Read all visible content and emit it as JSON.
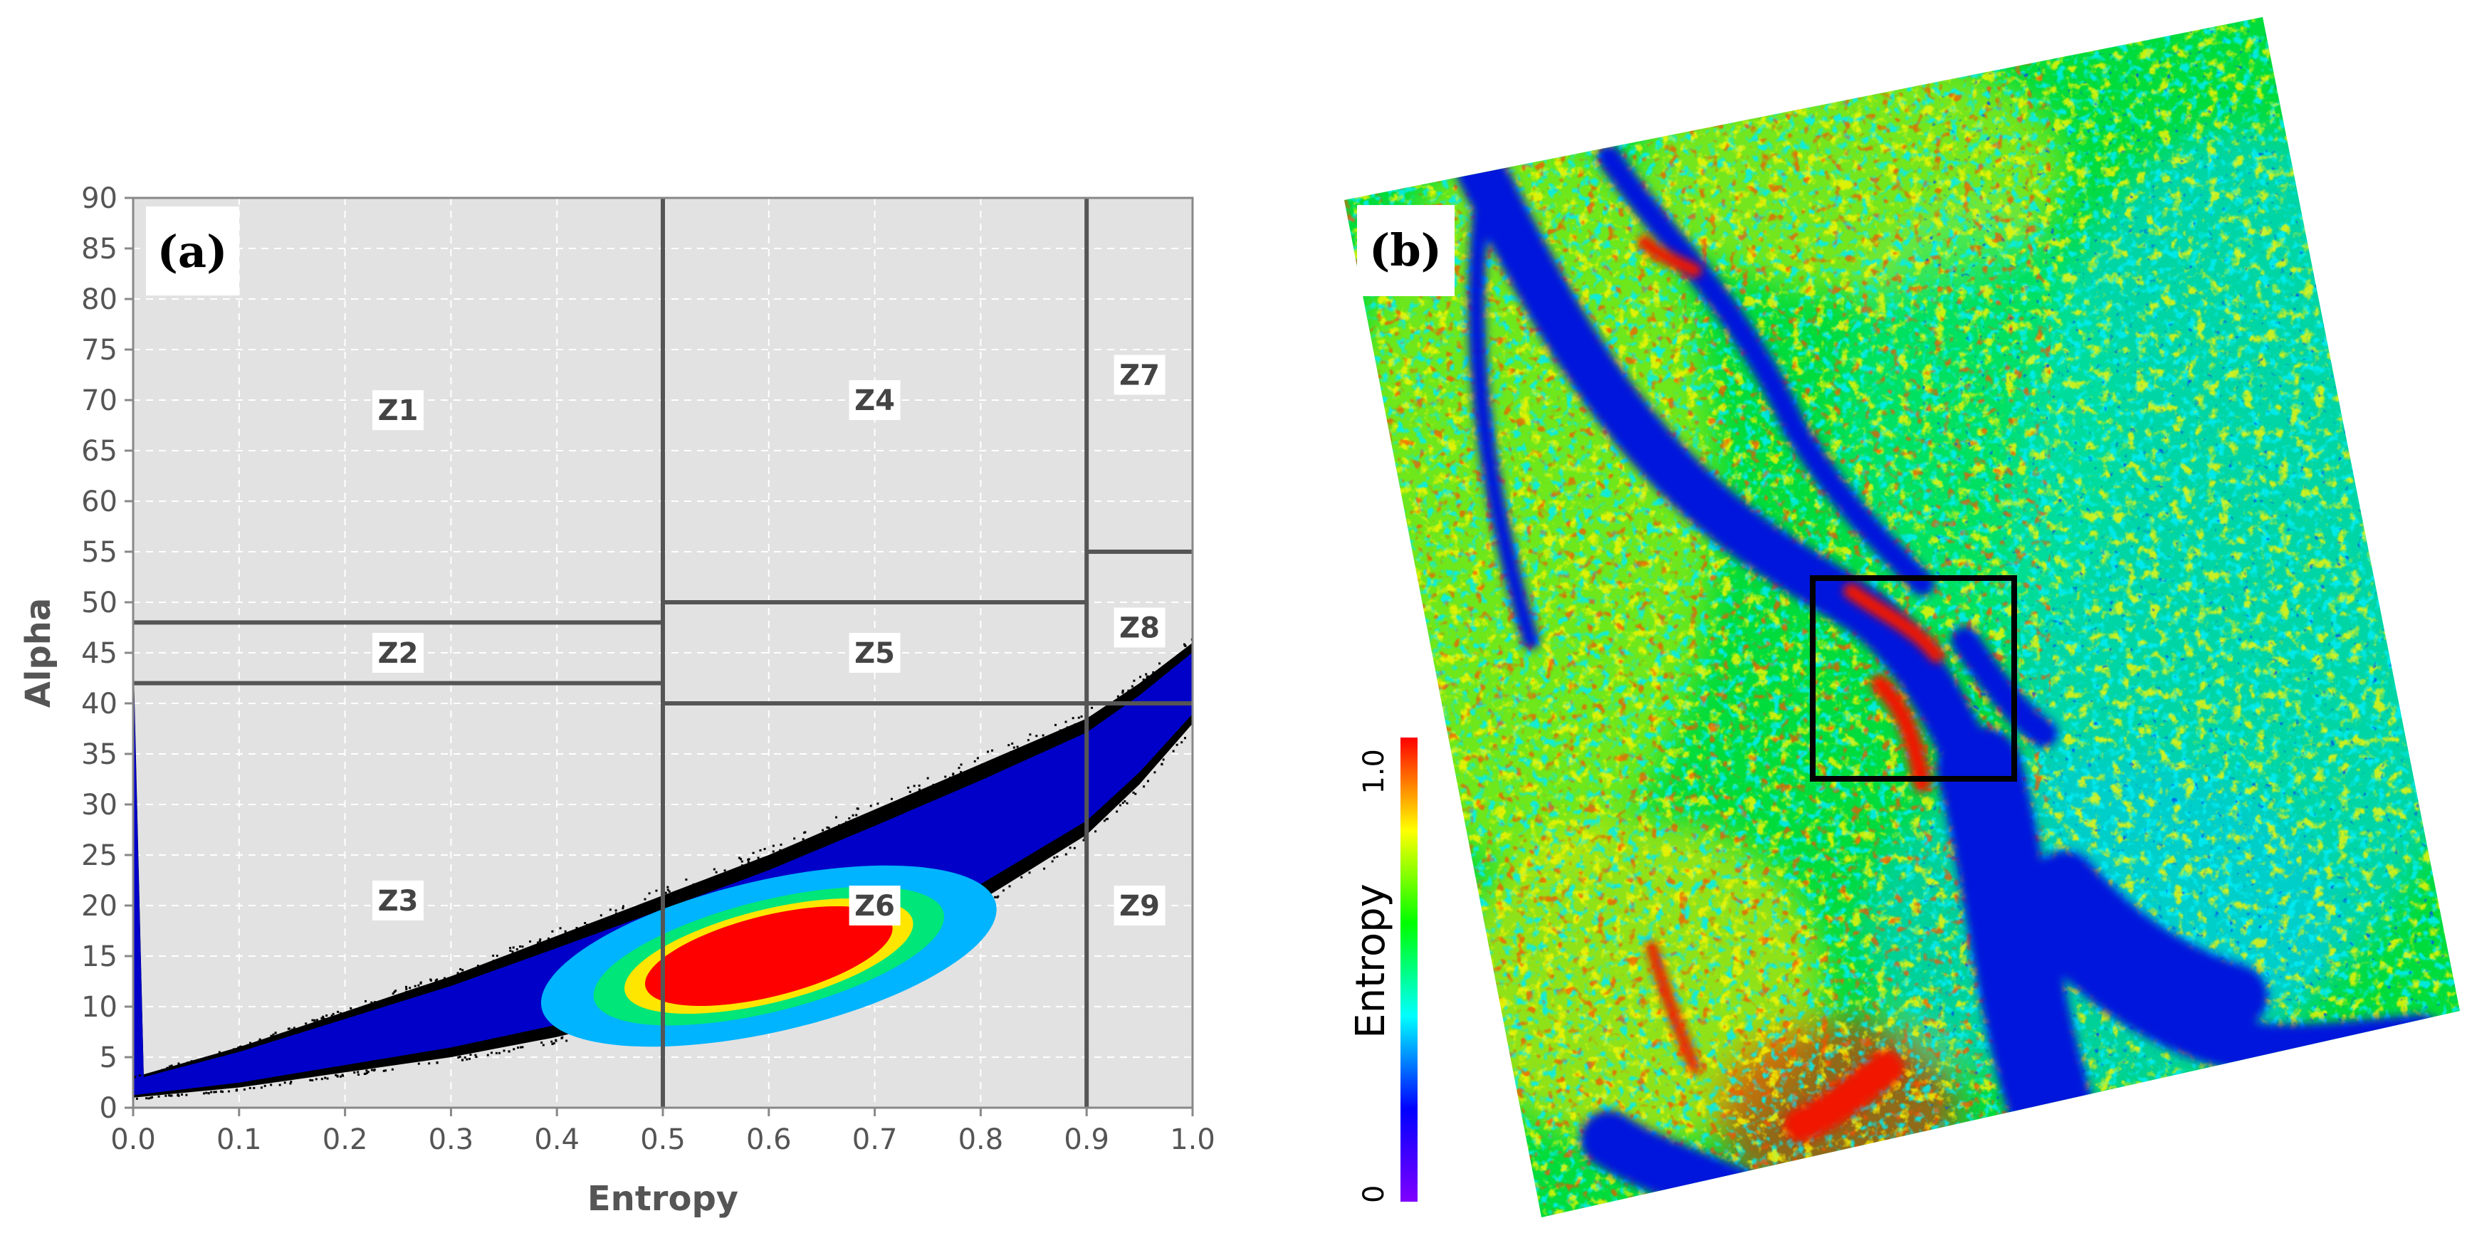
{
  "chart_data": [
    {
      "type": "scatter",
      "subtype": "density-scatter (H-Alpha plane)",
      "panel_label": "(a)",
      "xlabel": "Entropy",
      "ylabel": "Alpha",
      "xlim": [
        0.0,
        1.0
      ],
      "ylim": [
        0,
        90
      ],
      "xticks": [
        "0.0",
        "0.1",
        "0.2",
        "0.3",
        "0.4",
        "0.5",
        "0.6",
        "0.7",
        "0.8",
        "0.9",
        "1.0"
      ],
      "yticks": [
        "0",
        "5",
        "10",
        "15",
        "20",
        "25",
        "30",
        "35",
        "40",
        "45",
        "50",
        "55",
        "60",
        "65",
        "70",
        "75",
        "80",
        "85",
        "90"
      ],
      "grid": true,
      "zone_boundaries": [
        {
          "orientation": "vertical",
          "x": 0.5,
          "y_range": [
            0,
            90
          ]
        },
        {
          "orientation": "vertical",
          "x": 0.9,
          "y_range": [
            0,
            90
          ]
        },
        {
          "orientation": "horizontal",
          "y": 48,
          "x_range": [
            0.0,
            0.5
          ]
        },
        {
          "orientation": "horizontal",
          "y": 42,
          "x_range": [
            0.0,
            0.5
          ]
        },
        {
          "orientation": "horizontal",
          "y": 50,
          "x_range": [
            0.5,
            0.9
          ]
        },
        {
          "orientation": "horizontal",
          "y": 40,
          "x_range": [
            0.5,
            1.0
          ]
        },
        {
          "orientation": "horizontal",
          "y": 55,
          "x_range": [
            0.9,
            1.0
          ]
        }
      ],
      "zones": [
        {
          "label": "Z1",
          "x": 0.25,
          "y": 69
        },
        {
          "label": "Z2",
          "x": 0.25,
          "y": 45
        },
        {
          "label": "Z3",
          "x": 0.25,
          "y": 20.5
        },
        {
          "label": "Z4",
          "x": 0.7,
          "y": 70
        },
        {
          "label": "Z5",
          "x": 0.7,
          "y": 45
        },
        {
          "label": "Z6",
          "x": 0.7,
          "y": 20
        },
        {
          "label": "Z7",
          "x": 0.95,
          "y": 72.5
        },
        {
          "label": "Z8",
          "x": 0.95,
          "y": 47.5
        },
        {
          "label": "Z9",
          "x": 0.95,
          "y": 20
        }
      ],
      "density_cloud": {
        "lower_edge": [
          [
            0.0,
            1
          ],
          [
            0.1,
            2
          ],
          [
            0.2,
            3.5
          ],
          [
            0.3,
            5
          ],
          [
            0.4,
            7
          ],
          [
            0.5,
            9.5
          ],
          [
            0.6,
            12.5
          ],
          [
            0.7,
            16
          ],
          [
            0.8,
            20.5
          ],
          [
            0.9,
            27
          ],
          [
            0.95,
            32
          ],
          [
            1.0,
            38
          ]
        ],
        "upper_edge": [
          [
            0.0,
            3
          ],
          [
            0.1,
            6
          ],
          [
            0.2,
            9.5
          ],
          [
            0.3,
            13
          ],
          [
            0.4,
            17
          ],
          [
            0.5,
            21
          ],
          [
            0.6,
            25
          ],
          [
            0.7,
            29.5
          ],
          [
            0.8,
            34
          ],
          [
            0.9,
            38.5
          ],
          [
            0.95,
            42
          ],
          [
            1.0,
            46
          ]
        ],
        "peak": {
          "x": 0.6,
          "y": 15
        },
        "colormap": [
          "#000000",
          "#0000c8",
          "#00b4ff",
          "#00e678",
          "#ffe600",
          "#ff0000"
        ]
      },
      "colors": {
        "plot_bg": "#e2e2e2",
        "boundary": "#555555",
        "grid": "#ffffff",
        "axis": "#888888",
        "tick_text": "#555555"
      }
    },
    {
      "type": "heatmap",
      "panel_label": "(b)",
      "colorbar": {
        "label": "Entropy",
        "min_label": "0",
        "max_label": "1.0",
        "range": [
          0,
          1
        ],
        "colors": [
          "#8000ff",
          "#0000ff",
          "#00ffff",
          "#00ff00",
          "#ffff00",
          "#ff0000"
        ]
      },
      "highlight_box": "study area (black rectangle)",
      "colors": {
        "low": "#0018dc",
        "mid_low": "#00d2e6",
        "mid": "#00e100",
        "mid_high": "#f0f000",
        "high": "#f01400",
        "box": "#000000"
      }
    }
  ]
}
